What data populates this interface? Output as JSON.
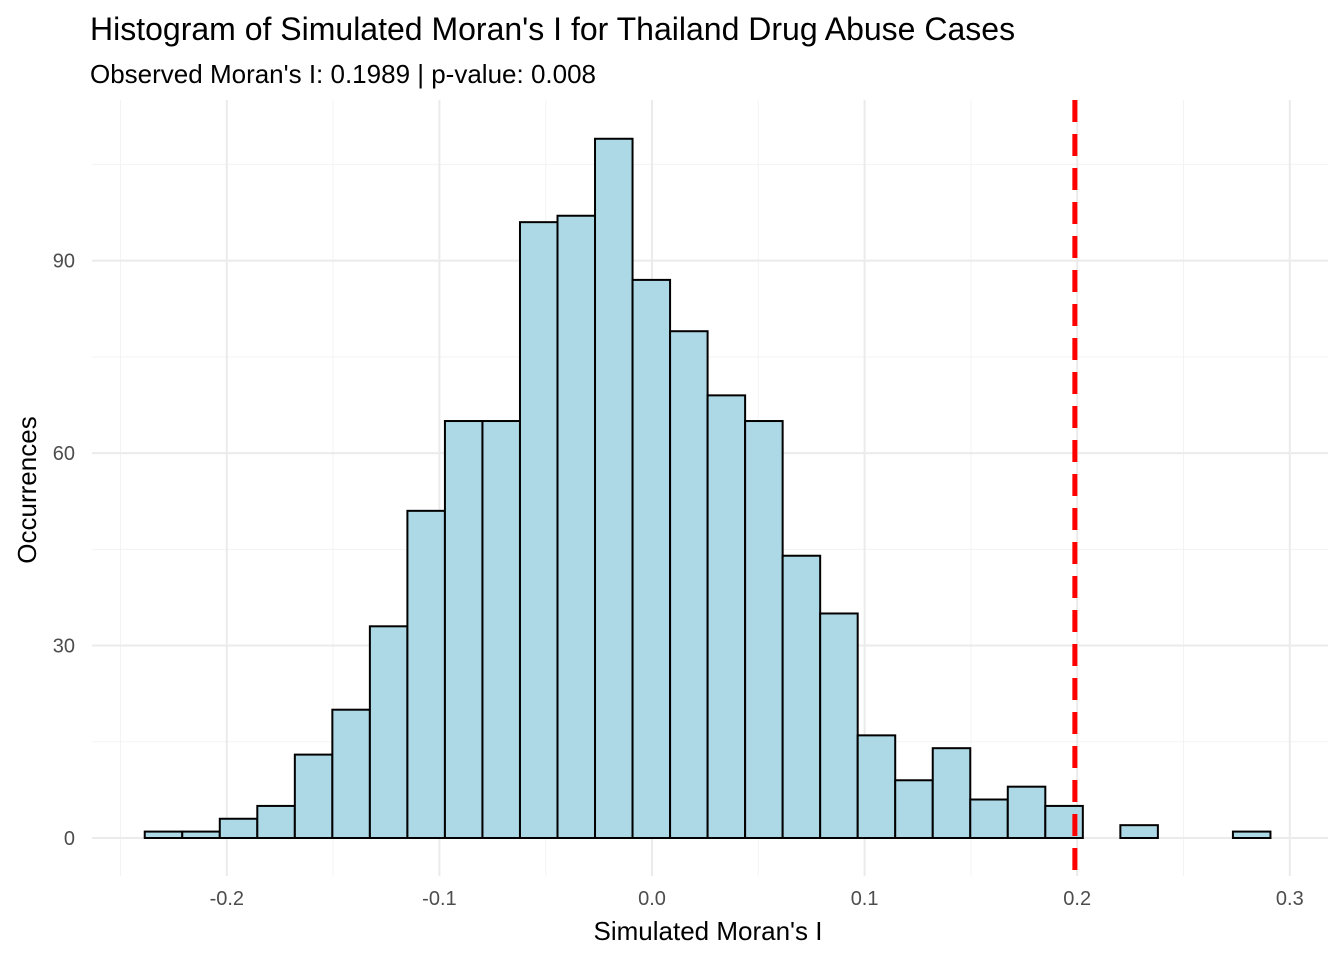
{
  "chart_data": {
    "type": "bar",
    "title": "Histogram of Simulated Moran's I for Thailand Drug Abuse Cases",
    "subtitle": "Observed Moran's I: 0.1989 | p-value: 0.008",
    "xlabel": "Simulated Moran's I",
    "ylabel": "Occurrences",
    "xlim": [
      -0.25,
      0.3
    ],
    "ylim": [
      -7,
      114
    ],
    "x_ticks": [
      -0.2,
      -0.1,
      0.0,
      0.1,
      0.2,
      0.3
    ],
    "x_tick_labels": [
      "-0.2",
      "-0.1",
      "0.0",
      "0.1",
      "0.2",
      "0.3"
    ],
    "y_ticks": [
      0,
      30,
      60,
      90
    ],
    "y_tick_labels": [
      "0",
      "30",
      "60",
      "90"
    ],
    "grid": true,
    "bin_start": -0.2386,
    "bin_width": 0.01765,
    "values": [
      1,
      1,
      3,
      5,
      13,
      20,
      33,
      51,
      65,
      65,
      96,
      97,
      109,
      87,
      79,
      69,
      65,
      44,
      35,
      16,
      9,
      14,
      6,
      8,
      5,
      0,
      2,
      0,
      0,
      1
    ],
    "bar_color": "#add8e6",
    "bar_outline": "#000000",
    "reference_line": {
      "x": 0.1989,
      "color": "#ff0000",
      "style": "dashed"
    }
  }
}
